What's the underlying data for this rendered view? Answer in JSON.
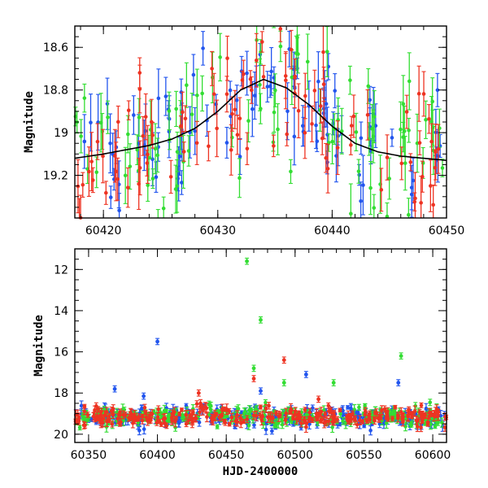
{
  "chart_data": [
    {
      "type": "scatter",
      "title": "",
      "xlabel": "",
      "ylabel": "Magnitude",
      "xlim": [
        60417.5,
        60450
      ],
      "ylim": [
        19.4,
        18.5
      ],
      "y_inverted": true,
      "x_ticks": [
        60420,
        60430,
        60440,
        60450
      ],
      "x_tick_labels": [
        "60420",
        "60430",
        "60440",
        "60450"
      ],
      "y_ticks": [
        18.6,
        18.8,
        19.0,
        19.2
      ],
      "y_tick_labels": [
        "18.6",
        "18.8",
        "19",
        "19.2"
      ],
      "grid": false,
      "legend": "none",
      "series": [
        {
          "color": "#2255ee",
          "band_center": 19.05,
          "band_scatter": 0.18
        },
        {
          "color": "#33dd33",
          "band_center": 19.0,
          "band_scatter": 0.2
        },
        {
          "color": "#ee3322",
          "band_center": 19.05,
          "band_scatter": 0.18
        }
      ],
      "model_curve": {
        "color": "#000000",
        "baseline_mag": 19.13,
        "peak_mag": 18.75,
        "peak_time": 60434,
        "x": [
          60417.5,
          60420,
          60422,
          60424,
          60426,
          60428,
          60430,
          60432,
          60434,
          60436,
          60438,
          60440,
          60442,
          60444,
          60446,
          60448,
          60450
        ],
        "y": [
          19.12,
          19.1,
          19.08,
          19.06,
          19.03,
          18.98,
          18.9,
          18.8,
          18.75,
          18.79,
          18.87,
          18.97,
          19.05,
          19.09,
          19.11,
          19.12,
          19.13
        ]
      }
    },
    {
      "type": "scatter",
      "title": "",
      "xlabel": "HJD-2400000",
      "ylabel": "Magnitude",
      "xlim": [
        60340,
        60610
      ],
      "ylim": [
        20.4,
        11
      ],
      "y_inverted": true,
      "x_ticks": [
        60350,
        60400,
        60450,
        60500,
        60550,
        60600
      ],
      "x_tick_labels": [
        "60350",
        "60400",
        "60450",
        "60500",
        "60550",
        "60600"
      ],
      "y_ticks": [
        12,
        14,
        16,
        18,
        20
      ],
      "y_tick_labels": [
        "12",
        "14",
        "16",
        "18",
        "20"
      ],
      "grid": false,
      "legend": "none",
      "series": [
        {
          "color": "#2255ee",
          "band_center": 19.15,
          "band_scatter": 0.25
        },
        {
          "color": "#33dd33",
          "band_center": 19.15,
          "band_scatter": 0.25
        },
        {
          "color": "#ee3322",
          "band_center": 19.15,
          "band_scatter": 0.22
        }
      ],
      "outliers": [
        {
          "color": "#33dd33",
          "x": 60465,
          "y": 11.6
        },
        {
          "color": "#33dd33",
          "x": 60475,
          "y": 14.45
        },
        {
          "color": "#33dd33",
          "x": 60577,
          "y": 16.2
        },
        {
          "color": "#33dd33",
          "x": 60470,
          "y": 16.8
        },
        {
          "color": "#33dd33",
          "x": 60492,
          "y": 17.5
        },
        {
          "color": "#33dd33",
          "x": 60528,
          "y": 17.5
        },
        {
          "color": "#2255ee",
          "x": 60400,
          "y": 15.5
        },
        {
          "color": "#2255ee",
          "x": 60369,
          "y": 17.8
        },
        {
          "color": "#2255ee",
          "x": 60575,
          "y": 17.5
        },
        {
          "color": "#2255ee",
          "x": 60508,
          "y": 17.1
        },
        {
          "color": "#2255ee",
          "x": 60390,
          "y": 18.15
        },
        {
          "color": "#2255ee",
          "x": 60475,
          "y": 17.9
        },
        {
          "color": "#ee3322",
          "x": 60492,
          "y": 16.4
        },
        {
          "color": "#ee3322",
          "x": 60470,
          "y": 17.3
        },
        {
          "color": "#ee3322",
          "x": 60517,
          "y": 18.3
        },
        {
          "color": "#ee3322",
          "x": 60430,
          "y": 18.0
        }
      ]
    }
  ]
}
